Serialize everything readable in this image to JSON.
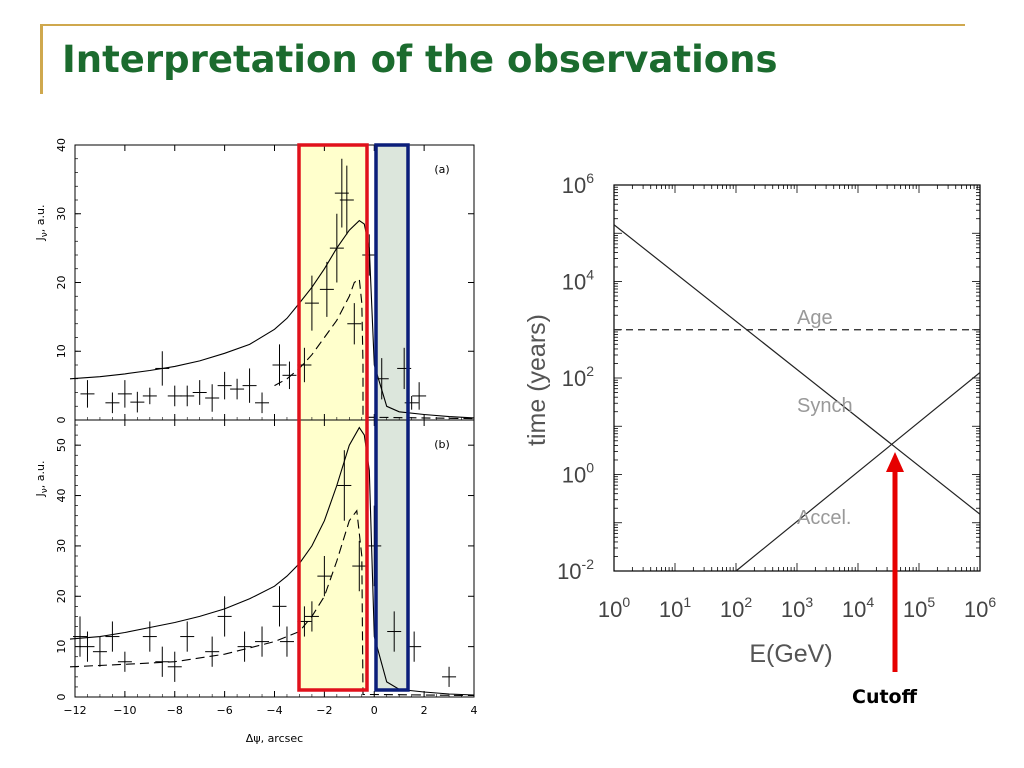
{
  "slide": {
    "title": "Interpretation of the observations",
    "colors": {
      "title": "#1b6b2e",
      "accent_line": "#cfa84e",
      "arrow": "#e60000"
    }
  },
  "chart_data": [
    {
      "type": "line",
      "panel": "(a)",
      "xlabel": "Δψ, arcsec",
      "ylabel": "J_ν, a.u.",
      "xlim": [
        -12,
        4
      ],
      "ylim": [
        0,
        40
      ],
      "x_ticks": [
        -12,
        -10,
        -8,
        -6,
        -4,
        -2,
        0,
        2,
        4
      ],
      "y_ticks": [
        0,
        10,
        20,
        30,
        40
      ],
      "series": [
        {
          "style": "solid",
          "x": [
            -12.2,
            -11,
            -10,
            -9,
            -8,
            -7,
            -6,
            -5,
            -4,
            -3.5,
            -3,
            -2.5,
            -2,
            -1.5,
            -1,
            -0.6,
            -0.4,
            -0.2,
            0,
            0.5,
            1,
            2,
            3,
            4
          ],
          "y": [
            6,
            6.3,
            6.7,
            7.2,
            7.8,
            8.6,
            9.7,
            11,
            13.2,
            14.8,
            17,
            19.3,
            22,
            25,
            27.6,
            29,
            28.5,
            25,
            8,
            2,
            1.2,
            0.8,
            0.5,
            0.3
          ]
        },
        {
          "style": "dashed",
          "x": [
            -4,
            -3.5,
            -3,
            -2.5,
            -2,
            -1.5,
            -1,
            -0.8,
            -0.6,
            -0.5,
            -0.45,
            -0.45,
            0,
            4
          ],
          "y": [
            5,
            6,
            7.5,
            9.5,
            12,
            14.5,
            18,
            20,
            20.5,
            17,
            8,
            0.4,
            0.4,
            0.2
          ]
        }
      ],
      "data_points": [
        {
          "x": -11.5,
          "y": 3.8,
          "ey": 2
        },
        {
          "x": -10.5,
          "y": 2.5,
          "ey": 1.5
        },
        {
          "x": -10,
          "y": 3.8,
          "ey": 2
        },
        {
          "x": -9.5,
          "y": 2.6,
          "ey": 1.5
        },
        {
          "x": -9,
          "y": 3.5,
          "ey": 1.2
        },
        {
          "x": -8.5,
          "y": 7.5,
          "ey": 2.5
        },
        {
          "x": -8,
          "y": 3.5,
          "ey": 1.5
        },
        {
          "x": -7.5,
          "y": 3.5,
          "ey": 1.5
        },
        {
          "x": -7,
          "y": 4,
          "ey": 1.8
        },
        {
          "x": -6.5,
          "y": 3.2,
          "ey": 2
        },
        {
          "x": -6,
          "y": 5,
          "ey": 2
        },
        {
          "x": -5.5,
          "y": 4.5,
          "ey": 1.5
        },
        {
          "x": -5,
          "y": 5,
          "ey": 2.5
        },
        {
          "x": -4.5,
          "y": 2.5,
          "ey": 1.5
        },
        {
          "x": -3.8,
          "y": 8,
          "ey": 3
        },
        {
          "x": -3.4,
          "y": 6.5,
          "ey": 2
        },
        {
          "x": -2.8,
          "y": 8,
          "ey": 2.5
        },
        {
          "x": -2.5,
          "y": 17,
          "ey": 4
        },
        {
          "x": -1.9,
          "y": 19,
          "ey": 4
        },
        {
          "x": -1.5,
          "y": 25,
          "ey": 5
        },
        {
          "x": -1.3,
          "y": 33,
          "ey": 5
        },
        {
          "x": -1.1,
          "y": 32,
          "ey": 5
        },
        {
          "x": -0.8,
          "y": 14,
          "ey": 3
        },
        {
          "x": -0.2,
          "y": 24,
          "ey": 3
        },
        {
          "x": 0.3,
          "y": 6,
          "ey": 3
        },
        {
          "x": 1.2,
          "y": 7.5,
          "ey": 3
        },
        {
          "x": 1.8,
          "y": 3.5,
          "ey": 2
        },
        {
          "x": 1.5,
          "y": 2.5,
          "ey": 1
        }
      ]
    },
    {
      "type": "line",
      "panel": "(b)",
      "xlabel": "Δψ, arcsec",
      "ylabel": "J_ν, a.u.",
      "xlim": [
        -12,
        4
      ],
      "ylim": [
        0,
        55
      ],
      "x_ticks": [
        -12,
        -10,
        -8,
        -6,
        -4,
        -2,
        0,
        2,
        4
      ],
      "y_ticks": [
        0,
        10,
        20,
        30,
        40,
        50
      ],
      "series": [
        {
          "style": "solid",
          "x": [
            -12.2,
            -11,
            -10,
            -9,
            -8,
            -7,
            -6,
            -5,
            -4,
            -3.5,
            -3,
            -2.5,
            -2,
            -1.5,
            -1,
            -0.6,
            -0.4,
            -0.2,
            0,
            0.5,
            1,
            2,
            3,
            4
          ],
          "y": [
            11.5,
            12,
            12.8,
            13.8,
            14.8,
            16,
            17.5,
            19.5,
            22,
            24,
            26.5,
            30,
            35,
            42,
            50,
            53.5,
            52,
            45,
            12,
            3,
            1.5,
            1,
            0.6,
            0.4
          ]
        },
        {
          "style": "dashed",
          "x": [
            -12.2,
            -10,
            -8,
            -6,
            -4,
            -3,
            -2.5,
            -2,
            -1.5,
            -1,
            -0.7,
            -0.5,
            -0.45,
            0,
            4
          ],
          "y": [
            6,
            6.5,
            7,
            8.5,
            11,
            13,
            16,
            20,
            27,
            35,
            37,
            28,
            0.5,
            0.5,
            0.3
          ]
        }
      ],
      "data_points": [
        {
          "x": -11.8,
          "y": 12,
          "ey": 4
        },
        {
          "x": -11.5,
          "y": 10,
          "ey": 3
        },
        {
          "x": -11,
          "y": 9,
          "ey": 3
        },
        {
          "x": -10.5,
          "y": 12,
          "ey": 3
        },
        {
          "x": -10,
          "y": 7,
          "ey": 2
        },
        {
          "x": -9,
          "y": 12,
          "ey": 3
        },
        {
          "x": -8.5,
          "y": 7,
          "ey": 3
        },
        {
          "x": -8,
          "y": 6,
          "ey": 3
        },
        {
          "x": -7.5,
          "y": 12,
          "ey": 3
        },
        {
          "x": -6.5,
          "y": 9,
          "ey": 3
        },
        {
          "x": -6,
          "y": 16,
          "ey": 4
        },
        {
          "x": -5.2,
          "y": 10,
          "ey": 3
        },
        {
          "x": -4.5,
          "y": 11,
          "ey": 3
        },
        {
          "x": -3.8,
          "y": 18,
          "ey": 4
        },
        {
          "x": -3.5,
          "y": 11,
          "ey": 3
        },
        {
          "x": -2.8,
          "y": 15,
          "ey": 3
        },
        {
          "x": -2.5,
          "y": 16,
          "ey": 3
        },
        {
          "x": -2,
          "y": 24,
          "ey": 4
        },
        {
          "x": -1.2,
          "y": 42,
          "ey": 7
        },
        {
          "x": -0.6,
          "y": 26,
          "ey": 5
        },
        {
          "x": 0,
          "y": 30,
          "ey": 8
        },
        {
          "x": 0.8,
          "y": 13,
          "ey": 4
        },
        {
          "x": 1.6,
          "y": 10,
          "ey": 3
        },
        {
          "x": 3,
          "y": 4,
          "ey": 2
        }
      ]
    },
    {
      "type": "line",
      "xlabel": "E(GeV)",
      "ylabel": "time  (years)",
      "xscale": "log",
      "yscale": "log",
      "xlim": [
        1,
        1000000
      ],
      "ylim": [
        0.01,
        1000000
      ],
      "x_tick_labels": [
        [
          "10",
          "0"
        ],
        [
          "10",
          "1"
        ],
        [
          "10",
          "2"
        ],
        [
          "10",
          "3"
        ],
        [
          "10",
          "4"
        ],
        [
          "10",
          "5"
        ],
        [
          "10",
          "6"
        ]
      ],
      "y_tick_labels": [
        [
          "10",
          "-2"
        ],
        [
          "10",
          "0"
        ],
        [
          "10",
          "2"
        ],
        [
          "10",
          "4"
        ],
        [
          "10",
          "6"
        ]
      ],
      "series": [
        {
          "name": "Age",
          "style": "dashed",
          "x": [
            1,
            1000000
          ],
          "y": [
            1000,
            1000
          ]
        },
        {
          "name": "Synch",
          "style": "solid",
          "x": [
            1,
            1000000
          ],
          "y": [
            150000,
            0.15
          ]
        },
        {
          "name": "Accel.",
          "style": "solid",
          "x": [
            100,
            1000000
          ],
          "y": [
            0.01,
            130
          ]
        }
      ],
      "annotation": "Cutoff"
    }
  ]
}
